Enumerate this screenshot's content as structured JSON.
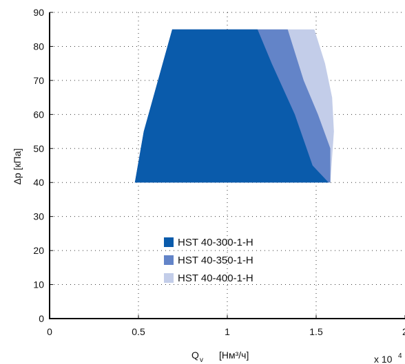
{
  "chart_data": {
    "type": "area",
    "ylabel": "Δp [кПа]",
    "xlabel": {
      "main": "Q",
      "sub": "v",
      "units": "[Нм³/ч]"
    },
    "x_multiplier": {
      "base": "x 10",
      "exponent": "4"
    },
    "xlim": [
      0,
      2
    ],
    "ylim": [
      0,
      90
    ],
    "xticks": [
      0,
      0.5,
      1,
      1.5,
      2
    ],
    "xtick_labels": [
      "0",
      "0.5",
      "1",
      "1.5",
      "2"
    ],
    "yticks": [
      0,
      10,
      20,
      30,
      40,
      50,
      60,
      70,
      80,
      90
    ],
    "ytick_labels": [
      "0",
      "10",
      "20",
      "30",
      "40",
      "50",
      "60",
      "70",
      "80",
      "90"
    ],
    "grid": true,
    "legend_position": "bottom-center",
    "series": [
      {
        "name": "HST 40-400-1-H",
        "color": "#c3cde9",
        "points": [
          [
            0.48,
            40
          ],
          [
            0.53,
            55
          ],
          [
            0.69,
            85
          ],
          [
            1.49,
            85
          ],
          [
            1.55,
            75
          ],
          [
            1.59,
            65
          ],
          [
            1.6,
            55
          ],
          [
            1.58,
            40
          ]
        ]
      },
      {
        "name": "HST 40-350-1-H",
        "color": "#6384c8",
        "points": [
          [
            0.48,
            40
          ],
          [
            0.53,
            55
          ],
          [
            0.69,
            85
          ],
          [
            1.34,
            85
          ],
          [
            1.43,
            70
          ],
          [
            1.51,
            60
          ],
          [
            1.58,
            50
          ],
          [
            1.58,
            40
          ]
        ]
      },
      {
        "name": "HST 40-300-1-H",
        "color": "#0a5bab",
        "points": [
          [
            0.48,
            40
          ],
          [
            0.53,
            55
          ],
          [
            0.69,
            85
          ],
          [
            1.17,
            85
          ],
          [
            1.25,
            75
          ],
          [
            1.38,
            60
          ],
          [
            1.48,
            45
          ],
          [
            1.57,
            40
          ]
        ]
      }
    ],
    "legend": [
      {
        "name": "HST 40-300-1-H",
        "color": "#0a5bab"
      },
      {
        "name": "HST 40-350-1-H",
        "color": "#6384c8"
      },
      {
        "name": "HST 40-400-1-H",
        "color": "#c3cde9"
      }
    ]
  }
}
